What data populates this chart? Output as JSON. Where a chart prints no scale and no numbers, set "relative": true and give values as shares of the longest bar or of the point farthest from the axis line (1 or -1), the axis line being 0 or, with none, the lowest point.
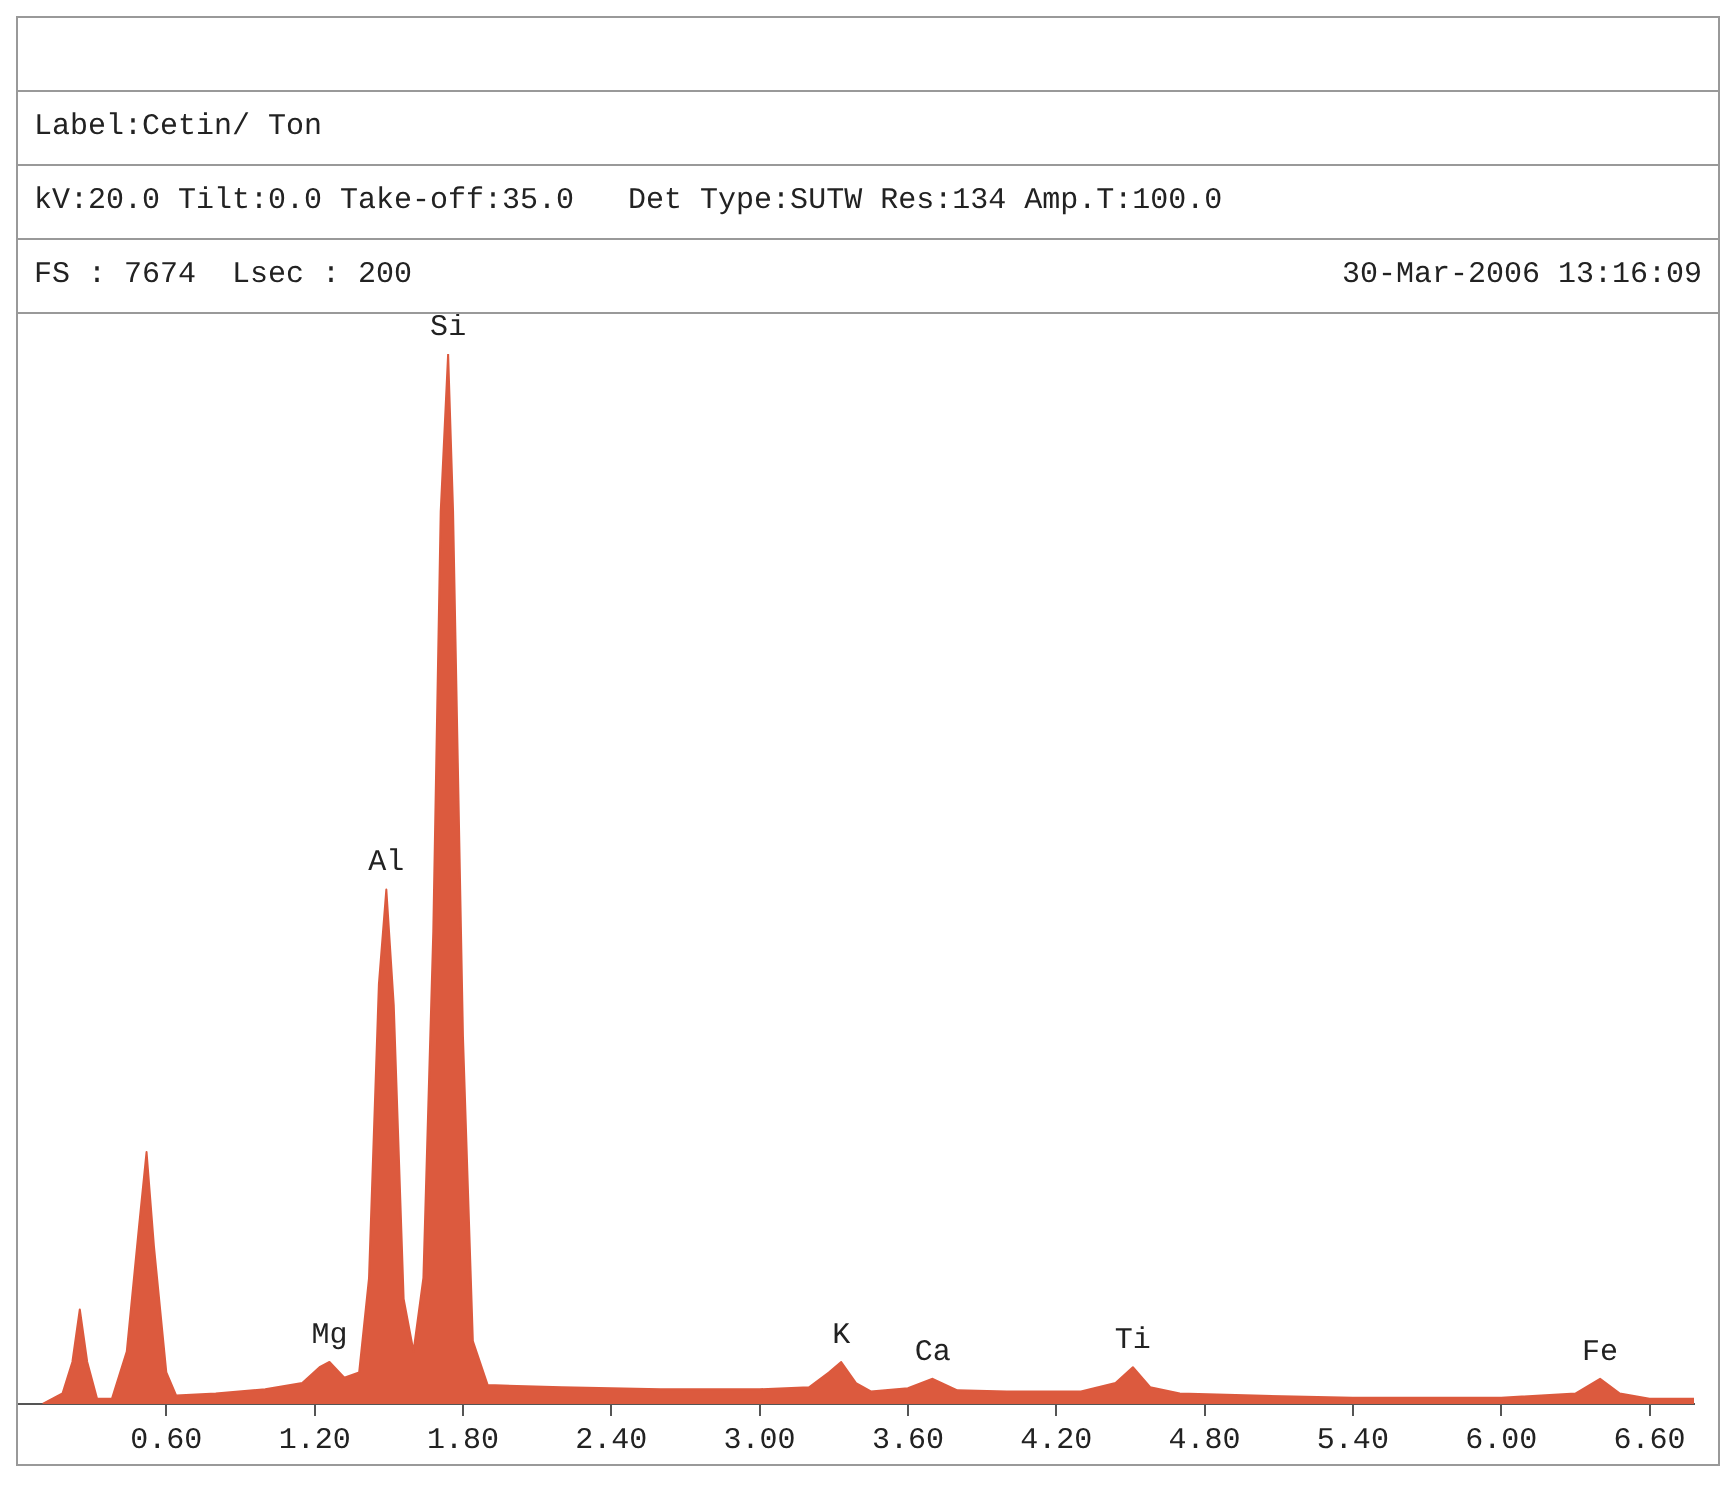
{
  "chart_data": {
    "type": "area",
    "title": "Label:Cetin/ Ton",
    "relative": true,
    "x": [
      0.1,
      0.18,
      0.22,
      0.25,
      0.28,
      0.32,
      0.38,
      0.44,
      0.49,
      0.52,
      0.55,
      0.6,
      0.64,
      0.8,
      1.0,
      1.15,
      1.22,
      1.26,
      1.32,
      1.38,
      1.42,
      1.46,
      1.49,
      1.52,
      1.56,
      1.6,
      1.64,
      1.68,
      1.71,
      1.74,
      1.76,
      1.8,
      1.84,
      1.9,
      2.2,
      2.6,
      3.0,
      3.2,
      3.28,
      3.33,
      3.39,
      3.45,
      3.6,
      3.7,
      3.8,
      4.0,
      4.3,
      4.44,
      4.51,
      4.58,
      4.7,
      5.0,
      5.4,
      6.0,
      6.3,
      6.4,
      6.48,
      6.6,
      6.78
    ],
    "series": [
      {
        "color": "#dc5a3e",
        "values": [
          0,
          0.01,
          0.04,
          0.09,
          0.04,
          0.005,
          0.005,
          0.05,
          0.17,
          0.24,
          0.15,
          0.03,
          0.008,
          0.01,
          0.014,
          0.02,
          0.035,
          0.04,
          0.025,
          0.03,
          0.12,
          0.4,
          0.49,
          0.38,
          0.1,
          0.05,
          0.12,
          0.45,
          0.85,
          1.0,
          0.85,
          0.35,
          0.06,
          0.018,
          0.016,
          0.014,
          0.014,
          0.016,
          0.03,
          0.04,
          0.02,
          0.012,
          0.015,
          0.024,
          0.013,
          0.012,
          0.012,
          0.02,
          0.035,
          0.016,
          0.01,
          0.008,
          0.006,
          0.006,
          0.01,
          0.024,
          0.01,
          0.005,
          0.005
        ]
      }
    ],
    "xlim": [
      0,
      6.78
    ],
    "xticks": [
      {
        "value": 0.6,
        "label": "0.60"
      },
      {
        "value": 1.2,
        "label": "1.20"
      },
      {
        "value": 1.8,
        "label": "1.80"
      },
      {
        "value": 2.4,
        "label": "2.40"
      },
      {
        "value": 3,
        "label": "3.00"
      },
      {
        "value": 3.6,
        "label": "3.60"
      },
      {
        "value": 4.2,
        "label": "4.20"
      },
      {
        "value": 4.8,
        "label": "4.80"
      },
      {
        "value": 5.4,
        "label": "5.40"
      },
      {
        "value": 6,
        "label": "6.00"
      },
      {
        "value": 6.6,
        "label": "6.60"
      }
    ],
    "grid": false,
    "legend": false,
    "annotations": [
      "kV:20.0 Tilt:0.0 Take-off:35.0   Det Type:SUTW Res:134 Amp.T:100.0",
      "FS : 7674  Lsec : 200",
      "30-Mar-2006 13:16:09",
      {
        "text": "Mg",
        "x": 1.26,
        "y": 0.04
      },
      {
        "text": "Al",
        "x": 1.49,
        "y": 0.49
      },
      {
        "text": "Si",
        "x": 1.74,
        "y": 1.0
      },
      {
        "text": "K",
        "x": 3.33,
        "y": 0.04
      },
      {
        "text": "Ca",
        "x": 3.7,
        "y": 0.024
      },
      {
        "text": "Ti",
        "x": 4.51,
        "y": 0.035
      },
      {
        "text": "Fe",
        "x": 6.4,
        "y": 0.024
      }
    ]
  }
}
